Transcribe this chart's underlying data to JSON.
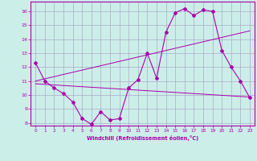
{
  "background_color": "#cceee8",
  "grid_color": "#aaaacc",
  "line_color": "#aa00aa",
  "xlabel": "Windchill (Refroidissement éolien,°C)",
  "xlim": [
    -0.5,
    23.5
  ],
  "ylim": [
    7.8,
    16.7
  ],
  "yticks": [
    8,
    9,
    10,
    11,
    12,
    13,
    14,
    15,
    16
  ],
  "xticks": [
    0,
    1,
    2,
    3,
    4,
    5,
    6,
    7,
    8,
    9,
    10,
    11,
    12,
    13,
    14,
    15,
    16,
    17,
    18,
    19,
    20,
    21,
    22,
    23
  ],
  "series_main": {
    "x": [
      0,
      1,
      2,
      3,
      4,
      5,
      6,
      7,
      8,
      9,
      10,
      11,
      12,
      13,
      14,
      15,
      16,
      17,
      18,
      19,
      20,
      21,
      22,
      23
    ],
    "y": [
      12.3,
      11.0,
      10.5,
      10.1,
      9.5,
      8.3,
      7.9,
      8.8,
      8.2,
      8.3,
      10.5,
      11.1,
      13.0,
      11.2,
      14.5,
      15.9,
      16.2,
      15.7,
      16.1,
      16.0,
      13.2,
      12.0,
      11.0,
      9.8
    ]
  },
  "series_linear_up": {
    "x": [
      0,
      23
    ],
    "y": [
      11.0,
      14.6
    ]
  },
  "series_linear_flat": {
    "x": [
      0,
      23
    ],
    "y": [
      10.8,
      9.85
    ]
  }
}
